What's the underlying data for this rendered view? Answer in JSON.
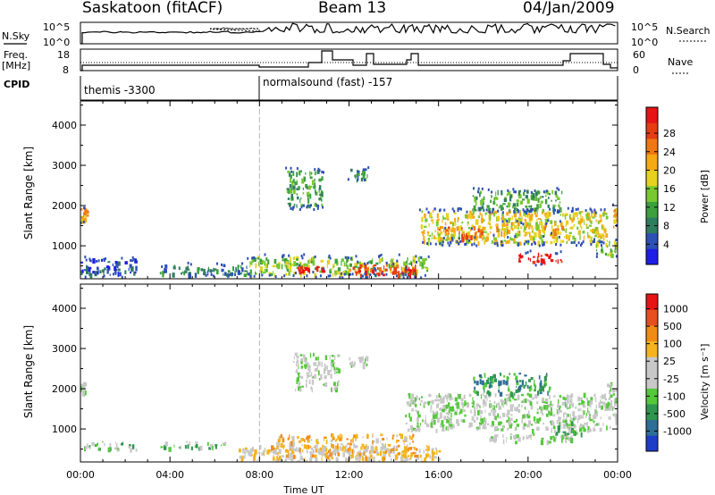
{
  "header": {
    "station": "Saskatoon (fitACF)",
    "beam": "Beam 13",
    "date": "04/Jan/2009"
  },
  "upper_panels": {
    "nsky_label": "N.Sky",
    "nsky_ticks": [
      "10^5",
      "10^0"
    ],
    "nsearch_label": "N.Search",
    "nsearch_ticks": [
      "10^5",
      "10^0"
    ],
    "freq_label": "Freq.",
    "freq_unit": "[MHz]",
    "freq_ticks": [
      "18",
      "8"
    ],
    "nave_label": "Nave",
    "nave_ticks": [
      "60",
      "0"
    ],
    "cpid_label": "CPID",
    "cpid_entries": [
      {
        "start_hour": 0,
        "text": "themis -3300"
      },
      {
        "start_hour": 8,
        "text": "normalsound (fast) -157"
      }
    ]
  },
  "chart_data": [
    {
      "type": "heatmap",
      "title": "",
      "xlabel": "",
      "ylabel": "Slant Range [km]",
      "xlim": [
        0,
        24
      ],
      "ylim": [
        180,
        4600
      ],
      "ytick_labels": [
        "1000",
        "2000",
        "3000",
        "4000"
      ],
      "colorbar": {
        "label": "Power [dB]",
        "tick_labels": [
          "4",
          "8",
          "12",
          "16",
          "20",
          "24",
          "28"
        ],
        "colors": [
          "#1e1ee6",
          "#2d50b4",
          "#2f7d5f",
          "#3ca03c",
          "#78c832",
          "#e6d21e",
          "#f5aa14",
          "#f07814",
          "#e63c14",
          "#e61414"
        ]
      },
      "echo_regions": [
        {
          "t": [
            0.0,
            0.3
          ],
          "r": [
            1650,
            1950
          ],
          "level": 6
        },
        {
          "t": [
            0.0,
            2.5
          ],
          "r": [
            300,
            700
          ],
          "level": 1
        },
        {
          "t": [
            3.5,
            7.5
          ],
          "r": [
            300,
            550
          ],
          "level": 2
        },
        {
          "t": [
            7.5,
            15.5
          ],
          "r": [
            300,
            750
          ],
          "level": 4
        },
        {
          "t": [
            9.5,
            11.0
          ],
          "r": [
            350,
            500
          ],
          "level": 9
        },
        {
          "t": [
            12.0,
            15.0
          ],
          "r": [
            300,
            600
          ],
          "level": 8
        },
        {
          "t": [
            13.0,
            15.0
          ],
          "r": [
            300,
            450
          ],
          "level": 9
        },
        {
          "t": [
            9.2,
            10.8
          ],
          "r": [
            2000,
            2900
          ],
          "level": 3
        },
        {
          "t": [
            12.0,
            12.8
          ],
          "r": [
            2650,
            2950
          ],
          "level": 2
        },
        {
          "t": [
            15.2,
            23.5
          ],
          "r": [
            1100,
            1900
          ],
          "level": 5
        },
        {
          "t": [
            16.0,
            18.0
          ],
          "r": [
            1200,
            1500
          ],
          "level": 7
        },
        {
          "t": [
            18.5,
            21.5
          ],
          "r": [
            1300,
            1600
          ],
          "level": 6
        },
        {
          "t": [
            19.5,
            21.5
          ],
          "r": [
            600,
            850
          ],
          "level": 9
        },
        {
          "t": [
            17.5,
            21.5
          ],
          "r": [
            1900,
            2400
          ],
          "level": 3
        },
        {
          "t": [
            23.0,
            24.0
          ],
          "r": [
            800,
            1200
          ],
          "level": 4
        },
        {
          "t": [
            23.8,
            24.0
          ],
          "r": [
            1500,
            2000
          ],
          "level": 6
        }
      ]
    },
    {
      "type": "heatmap",
      "title": "",
      "xlabel": "Time UT",
      "ylabel": "Slant Range [km]",
      "xlim": [
        0,
        24
      ],
      "ylim": [
        180,
        4600
      ],
      "ytick_labels": [
        "1000",
        "2000",
        "3000",
        "4000"
      ],
      "xtick_labels": [
        "00:00",
        "04:00",
        "08:00",
        "12:00",
        "16:00",
        "20:00",
        "00:00"
      ],
      "colorbar": {
        "label": "Velocity [m s⁻¹]",
        "tick_labels": [
          "1000",
          "500",
          "100",
          "25",
          "-25",
          "-100",
          "-500",
          "-1000"
        ],
        "colors": [
          "#1e3cc8",
          "#2f6e96",
          "#2f9650",
          "#55c83c",
          "#c8c8c8",
          "#c8c8c8",
          "#f5b41e",
          "#f08c14",
          "#e6501e",
          "#e61414"
        ]
      },
      "echo_regions": [
        {
          "t": [
            0.0,
            0.2
          ],
          "r": [
            1800,
            2200
          ],
          "level": 4
        },
        {
          "t": [
            0.0,
            2.5
          ],
          "r": [
            500,
            700
          ],
          "level": 3
        },
        {
          "t": [
            3.5,
            6.5
          ],
          "r": [
            550,
            700
          ],
          "level": 3
        },
        {
          "t": [
            7.0,
            16.0
          ],
          "r": [
            200,
            600
          ],
          "level": 5
        },
        {
          "t": [
            8.5,
            15.0
          ],
          "r": [
            300,
            900
          ],
          "level": 6
        },
        {
          "t": [
            9.5,
            11.5
          ],
          "r": [
            2000,
            2900
          ],
          "level": 4
        },
        {
          "t": [
            12.0,
            12.8
          ],
          "r": [
            2600,
            2850
          ],
          "level": 4
        },
        {
          "t": [
            14.5,
            24.0
          ],
          "r": [
            1000,
            1900
          ],
          "level": 4
        },
        {
          "t": [
            18.0,
            22.0
          ],
          "r": [
            700,
            900
          ],
          "level": 4
        },
        {
          "t": [
            21.0,
            22.5
          ],
          "r": [
            900,
            1300
          ],
          "level": 3
        },
        {
          "t": [
            17.5,
            21.0
          ],
          "r": [
            1900,
            2400
          ],
          "level": 2
        },
        {
          "t": [
            23.5,
            24.0
          ],
          "r": [
            1500,
            2200
          ],
          "level": 4
        }
      ]
    }
  ]
}
